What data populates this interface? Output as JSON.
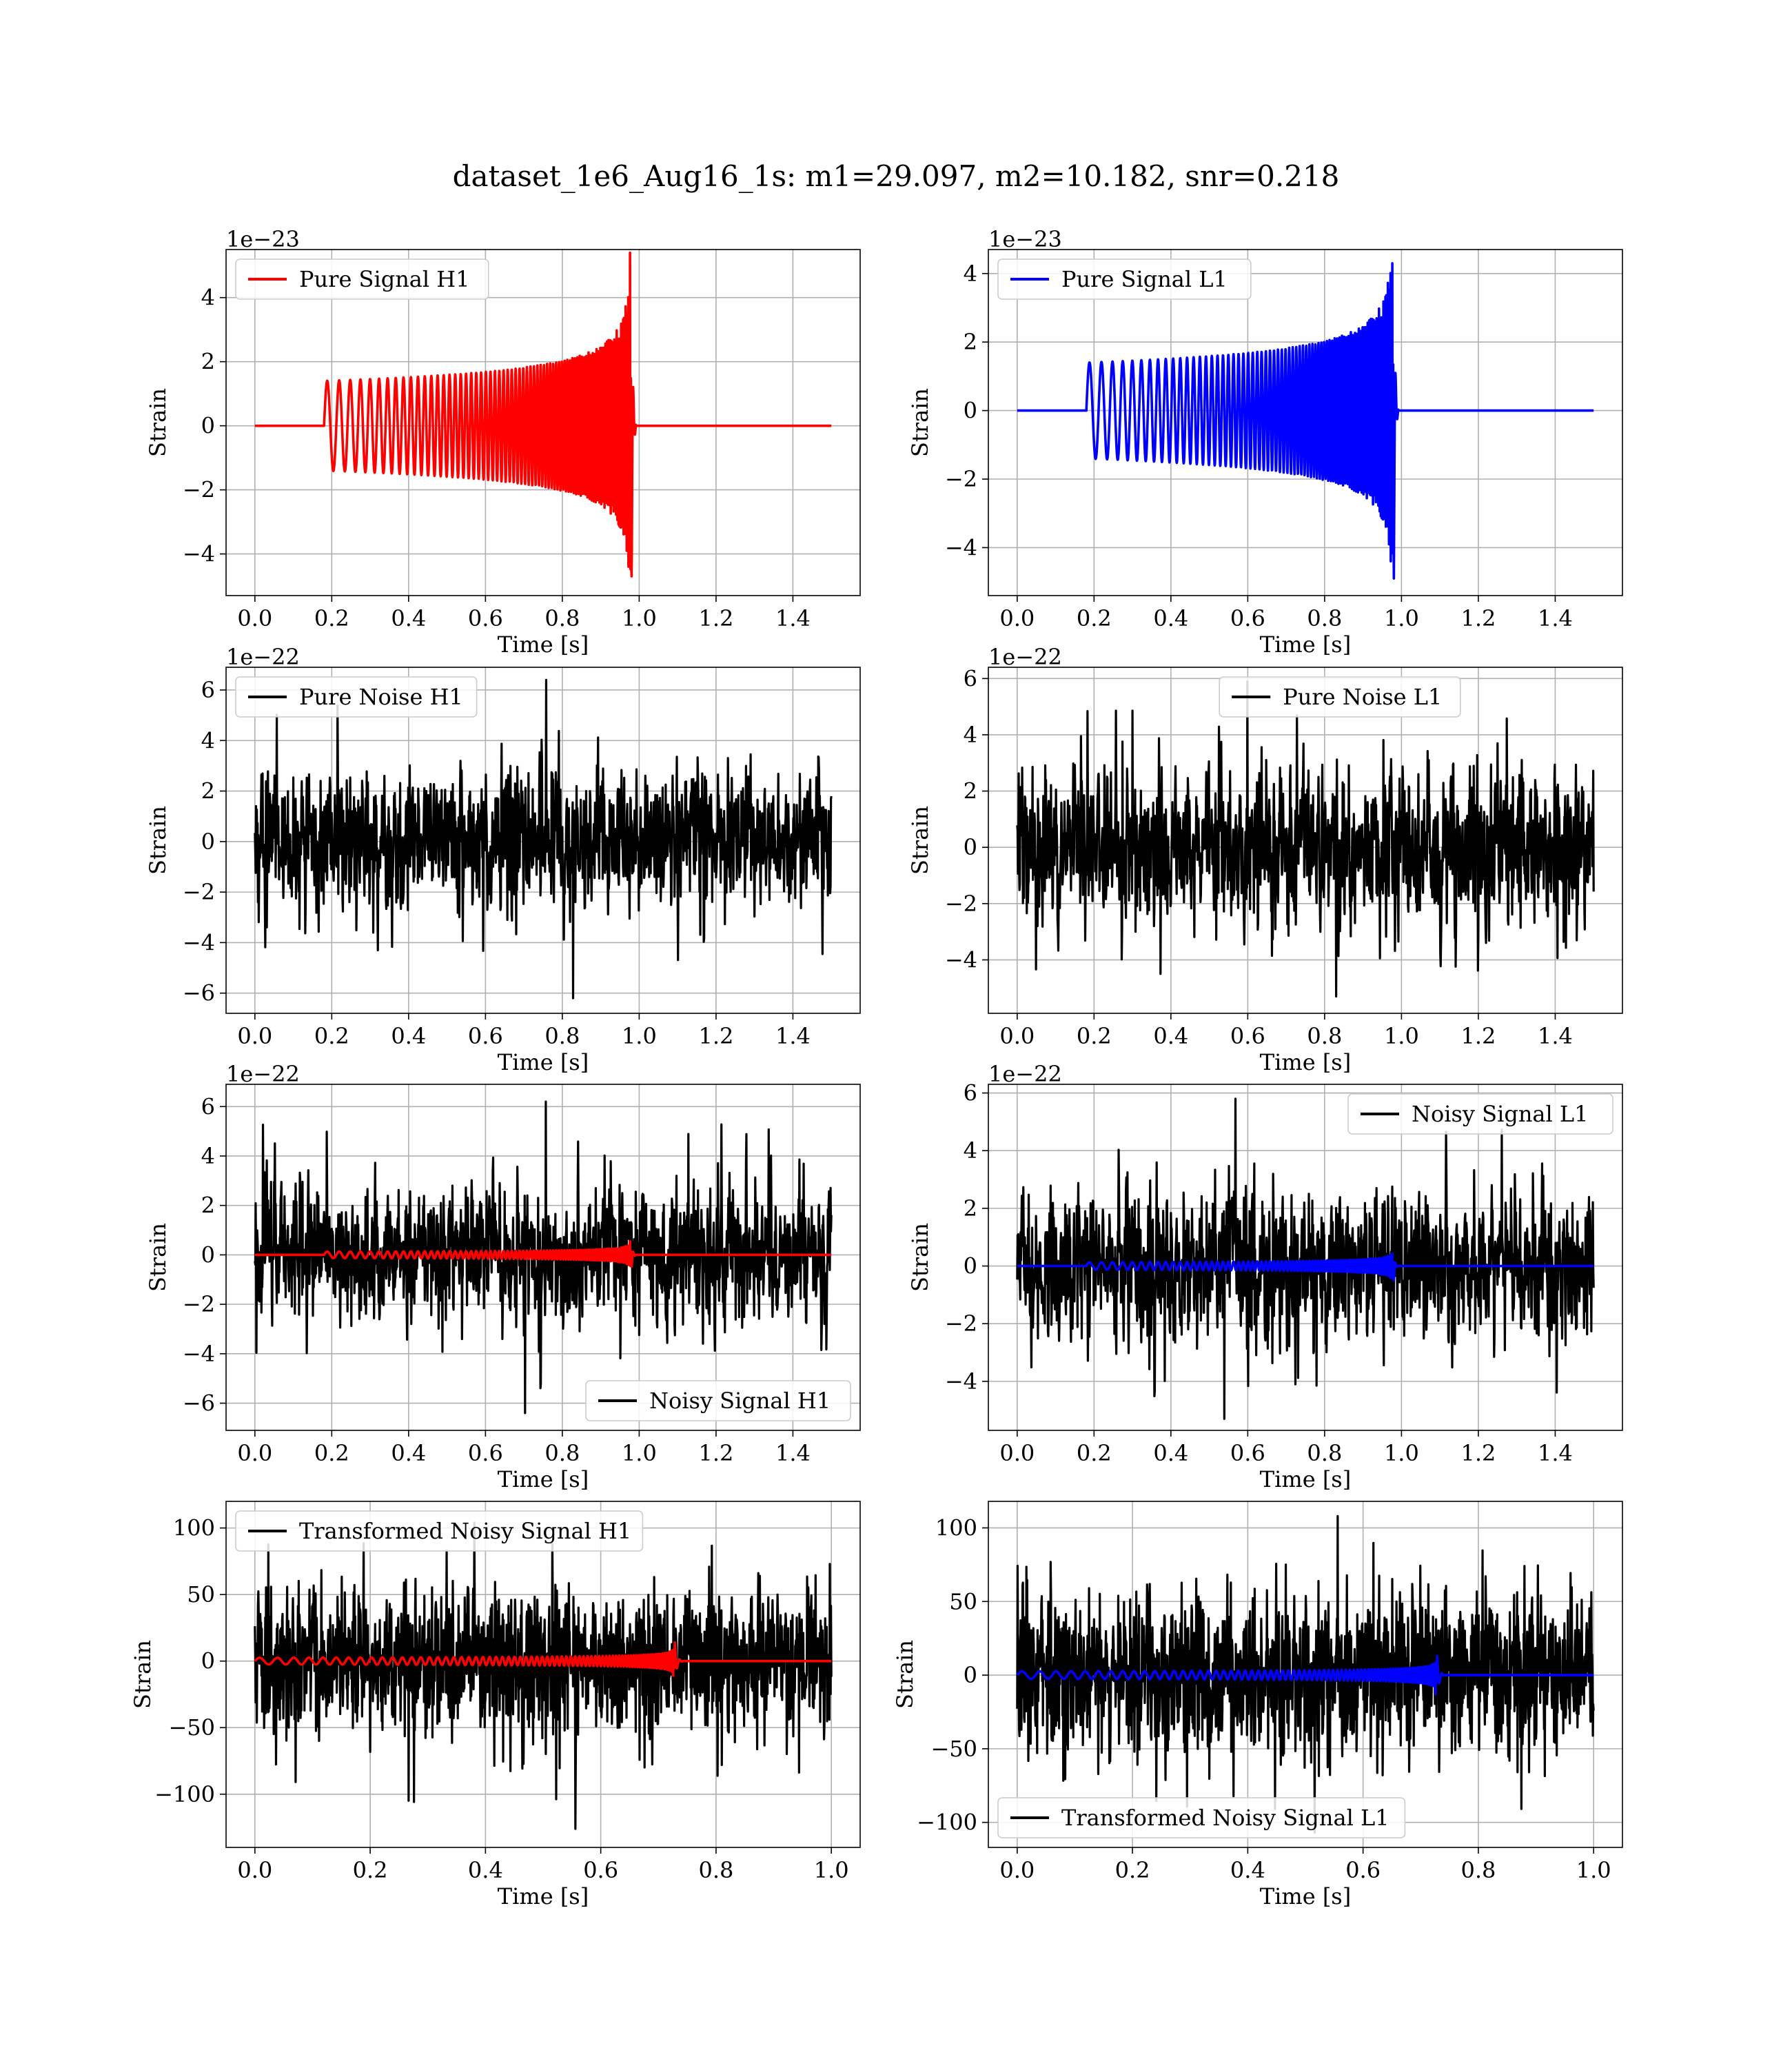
{
  "figure": {
    "suptitle": "dataset_1e6_Aug16_1s: m1=29.097, m2=10.182, snr=0.218"
  },
  "colors": {
    "h1_signal": "#ff0000",
    "l1_signal": "#0000ff",
    "noise": "#000000",
    "grid": "#b0b0b0"
  },
  "chart_data": [
    {
      "id": "pure_signal_h1",
      "type": "line",
      "xlabel": "Time [s]",
      "ylabel": "Strain",
      "xlim": [
        -0.075,
        1.575
      ],
      "ylim": [
        -5.3,
        5.5
      ],
      "xticks": [
        0.0,
        0.2,
        0.4,
        0.6,
        0.8,
        1.0,
        1.2,
        1.4
      ],
      "xtick_labels": [
        "0.0",
        "0.2",
        "0.4",
        "0.6",
        "0.8",
        "1.0",
        "1.2",
        "1.4"
      ],
      "yticks": [
        -4,
        -2,
        0,
        2,
        4
      ],
      "ytick_labels": [
        "−4",
        "−2",
        "0",
        "2",
        "4"
      ],
      "offset_text": "1e−23",
      "grid": true,
      "legend": {
        "position": "upper-left",
        "entries": [
          "Pure Signal H1"
        ]
      },
      "series": [
        {
          "name": "Pure Signal H1",
          "kind": "chirp",
          "color": "#ff0000",
          "x_range": [
            0.0,
            1.5
          ],
          "onset": 0.18,
          "merger": 0.98,
          "amp_start": 1.4,
          "amp_peak": 5.4,
          "amp_min": -4.7,
          "freq_start": 30,
          "freq_end": 200
        }
      ]
    },
    {
      "id": "pure_signal_l1",
      "type": "line",
      "xlabel": "Time [s]",
      "ylabel": "Strain",
      "xlim": [
        -0.075,
        1.575
      ],
      "ylim": [
        -5.4,
        4.7
      ],
      "xticks": [
        0.0,
        0.2,
        0.4,
        0.6,
        0.8,
        1.0,
        1.2,
        1.4
      ],
      "xtick_labels": [
        "0.0",
        "0.2",
        "0.4",
        "0.6",
        "0.8",
        "1.0",
        "1.2",
        "1.4"
      ],
      "yticks": [
        -4,
        -2,
        0,
        2,
        4
      ],
      "ytick_labels": [
        "−4",
        "−2",
        "0",
        "2",
        "4"
      ],
      "offset_text": "1e−23",
      "grid": true,
      "legend": {
        "position": "upper-left",
        "entries": [
          "Pure Signal L1"
        ]
      },
      "series": [
        {
          "name": "Pure Signal L1",
          "kind": "chirp",
          "color": "#0000ff",
          "x_range": [
            0.0,
            1.5
          ],
          "onset": 0.18,
          "merger": 0.98,
          "amp_start": 1.4,
          "amp_peak": 4.3,
          "amp_min": -4.9,
          "freq_start": 30,
          "freq_end": 200
        }
      ]
    },
    {
      "id": "pure_noise_h1",
      "type": "line",
      "xlabel": "Time [s]",
      "ylabel": "Strain",
      "xlim": [
        -0.075,
        1.575
      ],
      "ylim": [
        -6.8,
        6.9
      ],
      "xticks": [
        0.0,
        0.2,
        0.4,
        0.6,
        0.8,
        1.0,
        1.2,
        1.4
      ],
      "xtick_labels": [
        "0.0",
        "0.2",
        "0.4",
        "0.6",
        "0.8",
        "1.0",
        "1.2",
        "1.4"
      ],
      "yticks": [
        -6,
        -4,
        -2,
        0,
        2,
        4,
        6
      ],
      "ytick_labels": [
        "−6",
        "−4",
        "−2",
        "0",
        "2",
        "4",
        "6"
      ],
      "offset_text": "1e−22",
      "grid": true,
      "legend": {
        "position": "upper-left",
        "entries": [
          "Pure Noise H1"
        ]
      },
      "series": [
        {
          "name": "Pure Noise H1",
          "kind": "noise",
          "color": "#000000",
          "x_range": [
            0.0,
            1.5
          ],
          "std": 1.35,
          "max": 6.4,
          "min": -6.2
        }
      ]
    },
    {
      "id": "pure_noise_l1",
      "type": "line",
      "xlabel": "Time [s]",
      "ylabel": "Strain",
      "xlim": [
        -0.075,
        1.575
      ],
      "ylim": [
        -5.9,
        6.4
      ],
      "xticks": [
        0.0,
        0.2,
        0.4,
        0.6,
        0.8,
        1.0,
        1.2,
        1.4
      ],
      "xtick_labels": [
        "0.0",
        "0.2",
        "0.4",
        "0.6",
        "0.8",
        "1.0",
        "1.2",
        "1.4"
      ],
      "yticks": [
        -4,
        -2,
        0,
        2,
        4,
        6
      ],
      "ytick_labels": [
        "−4",
        "−2",
        "0",
        "2",
        "4",
        "6"
      ],
      "offset_text": "1e−22",
      "grid": true,
      "legend": {
        "position": "upper-center",
        "entries": [
          "Pure Noise L1"
        ]
      },
      "series": [
        {
          "name": "Pure Noise L1",
          "kind": "noise",
          "color": "#000000",
          "x_range": [
            0.0,
            1.5
          ],
          "std": 1.3,
          "max": 5.9,
          "min": -5.3
        }
      ]
    },
    {
      "id": "noisy_signal_h1",
      "type": "line",
      "xlabel": "Time [s]",
      "ylabel": "Strain",
      "xlim": [
        -0.075,
        1.575
      ],
      "ylim": [
        -7.1,
        6.9
      ],
      "xticks": [
        0.0,
        0.2,
        0.4,
        0.6,
        0.8,
        1.0,
        1.2,
        1.4
      ],
      "xtick_labels": [
        "0.0",
        "0.2",
        "0.4",
        "0.6",
        "0.8",
        "1.0",
        "1.2",
        "1.4"
      ],
      "yticks": [
        -6,
        -4,
        -2,
        0,
        2,
        4,
        6
      ],
      "ytick_labels": [
        "−6",
        "−4",
        "−2",
        "0",
        "2",
        "4",
        "6"
      ],
      "offset_text": "1e−22",
      "grid": true,
      "legend": {
        "position": "lower-right",
        "entries": [
          "Noisy Signal H1"
        ]
      },
      "series": [
        {
          "name": "Noisy Signal H1",
          "kind": "noise",
          "color": "#000000",
          "x_range": [
            0.0,
            1.5
          ],
          "std": 1.35,
          "max": 6.2,
          "min": -6.4
        },
        {
          "kind": "chirp",
          "color": "#ff0000",
          "x_range": [
            0.0,
            1.5
          ],
          "onset": 0.18,
          "merger": 0.98,
          "amp_start": 0.13,
          "amp_peak": 0.55,
          "amp_min": -0.47,
          "freq_start": 30,
          "freq_end": 200
        }
      ]
    },
    {
      "id": "noisy_signal_l1",
      "type": "line",
      "xlabel": "Time [s]",
      "ylabel": "Strain",
      "xlim": [
        -0.075,
        1.575
      ],
      "ylim": [
        -5.7,
        6.3
      ],
      "xticks": [
        0.0,
        0.2,
        0.4,
        0.6,
        0.8,
        1.0,
        1.2,
        1.4
      ],
      "xtick_labels": [
        "0.0",
        "0.2",
        "0.4",
        "0.6",
        "0.8",
        "1.0",
        "1.2",
        "1.4"
      ],
      "yticks": [
        -4,
        -2,
        0,
        2,
        4,
        6
      ],
      "ytick_labels": [
        "−4",
        "−2",
        "0",
        "2",
        "4",
        "6"
      ],
      "offset_text": "1e−22",
      "grid": true,
      "legend": {
        "position": "upper-right",
        "entries": [
          "Noisy Signal L1"
        ]
      },
      "series": [
        {
          "name": "Noisy Signal L1",
          "kind": "noise",
          "color": "#000000",
          "x_range": [
            0.0,
            1.5
          ],
          "std": 1.3,
          "max": 5.8,
          "min": -5.3
        },
        {
          "kind": "chirp",
          "color": "#0000ff",
          "x_range": [
            0.0,
            1.5
          ],
          "onset": 0.18,
          "merger": 0.98,
          "amp_start": 0.13,
          "amp_peak": 0.43,
          "amp_min": -0.49,
          "freq_start": 30,
          "freq_end": 200
        }
      ]
    },
    {
      "id": "transformed_noisy_signal_h1",
      "type": "line",
      "xlabel": "Time [s]",
      "ylabel": "Strain",
      "xlim": [
        -0.05,
        1.05
      ],
      "ylim": [
        -140,
        120
      ],
      "xticks": [
        0.0,
        0.2,
        0.4,
        0.6,
        0.8,
        1.0
      ],
      "xtick_labels": [
        "0.0",
        "0.2",
        "0.4",
        "0.6",
        "0.8",
        "1.0"
      ],
      "yticks": [
        -100,
        -50,
        0,
        50,
        100
      ],
      "ytick_labels": [
        "−100",
        "−50",
        "0",
        "50",
        "100"
      ],
      "offset_text": "",
      "grid": true,
      "legend": {
        "position": "upper-left",
        "entries": [
          "Transformed Noisy Signal H1"
        ]
      },
      "series": [
        {
          "name": "Transformed Noisy Signal H1",
          "kind": "noise",
          "color": "#000000",
          "x_range": [
            0.0,
            1.0
          ],
          "std": 28,
          "max": 104,
          "min": -126
        },
        {
          "kind": "chirp",
          "color": "#ff0000",
          "x_range": [
            0.0,
            1.0
          ],
          "onset": 0.0,
          "merger": 0.73,
          "amp_start": 2.5,
          "amp_peak": 14,
          "amp_min": -11,
          "freq_start": 30,
          "freq_end": 200
        }
      ]
    },
    {
      "id": "transformed_noisy_signal_l1",
      "type": "line",
      "xlabel": "Time [s]",
      "ylabel": "Strain",
      "xlim": [
        -0.05,
        1.05
      ],
      "ylim": [
        -117,
        118
      ],
      "xticks": [
        0.0,
        0.2,
        0.4,
        0.6,
        0.8,
        1.0
      ],
      "xtick_labels": [
        "0.0",
        "0.2",
        "0.4",
        "0.6",
        "0.8",
        "1.0"
      ],
      "yticks": [
        -100,
        -50,
        0,
        50,
        100
      ],
      "ytick_labels": [
        "−100",
        "−50",
        "0",
        "50",
        "100"
      ],
      "offset_text": "",
      "grid": true,
      "legend": {
        "position": "lower-left",
        "entries": [
          "Transformed Noisy Signal L1"
        ]
      },
      "series": [
        {
          "name": "Transformed Noisy Signal L1",
          "kind": "noise",
          "color": "#000000",
          "x_range": [
            0.0,
            1.0
          ],
          "std": 28,
          "max": 108,
          "min": -107
        },
        {
          "kind": "chirp",
          "color": "#0000ff",
          "x_range": [
            0.0,
            1.0
          ],
          "onset": 0.0,
          "merger": 0.73,
          "amp_start": 2.5,
          "amp_peak": 13,
          "amp_min": -13,
          "freq_start": 30,
          "freq_end": 200
        }
      ]
    }
  ]
}
